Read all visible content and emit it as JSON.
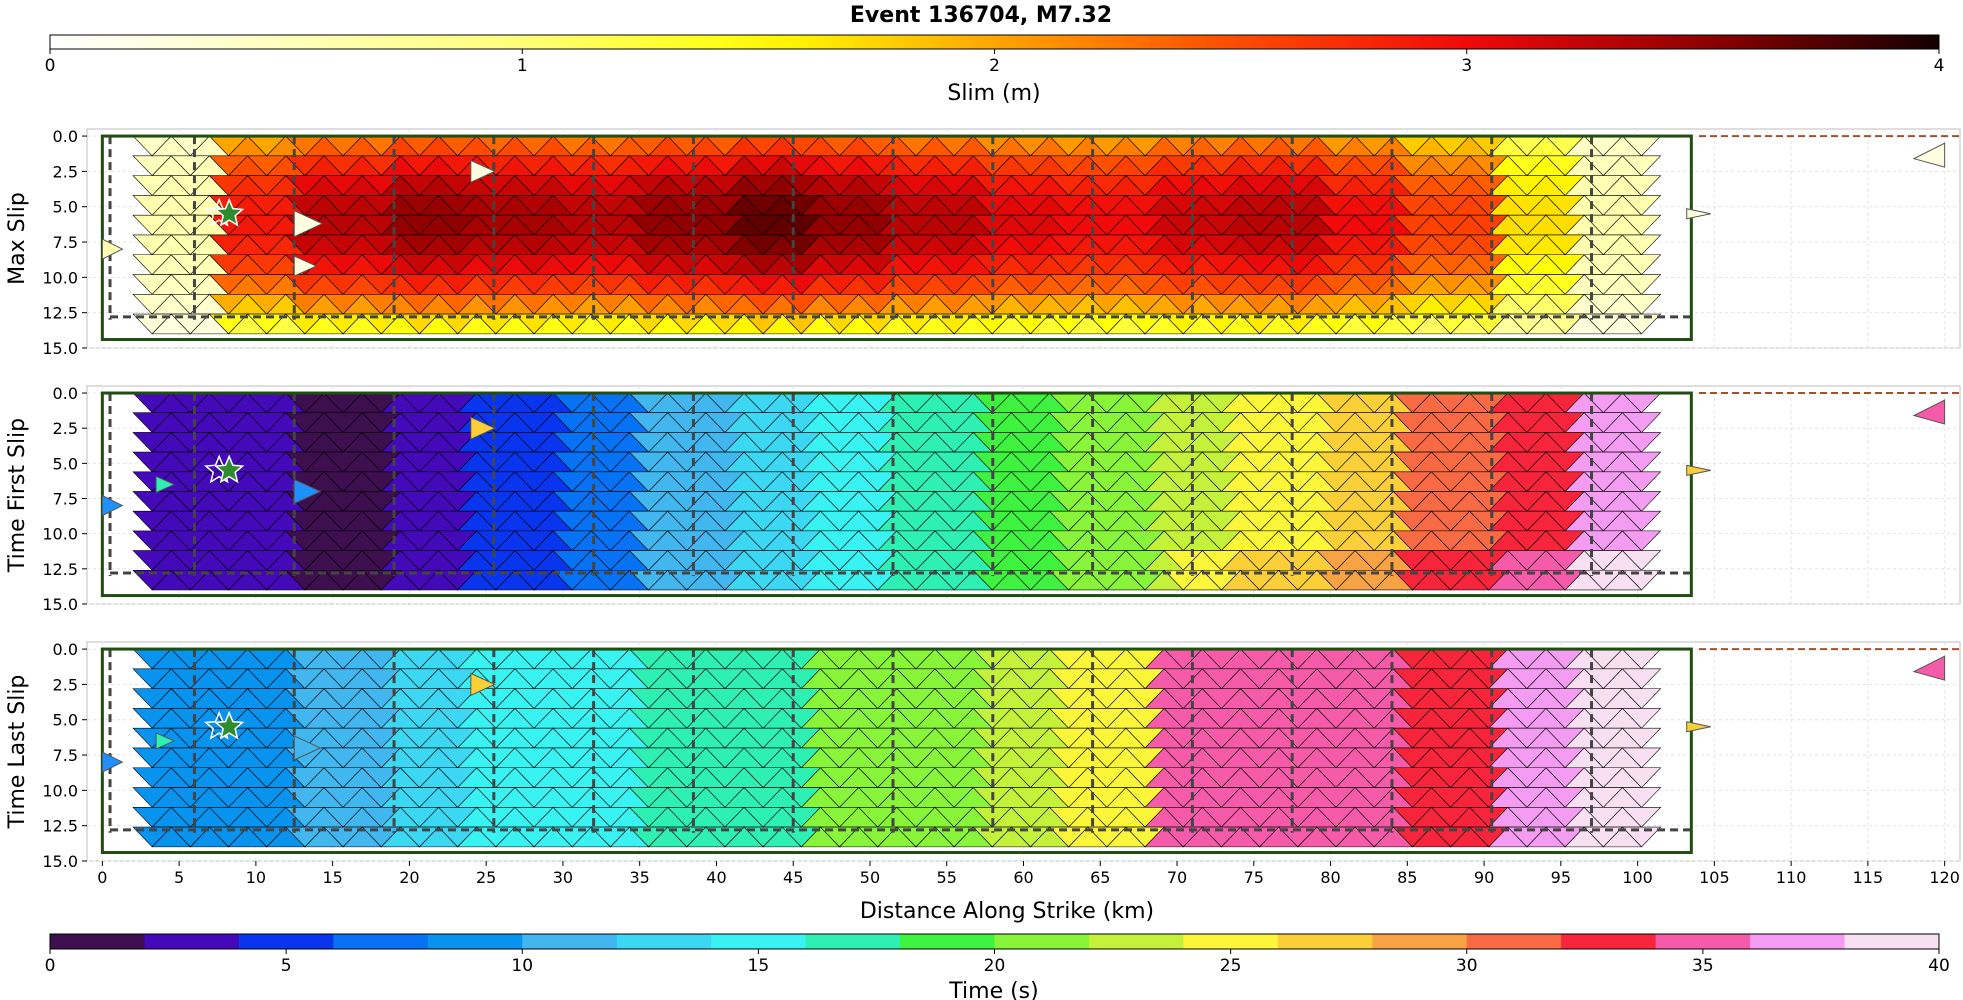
{
  "title": "Event 136704, M7.32",
  "chart_data": [
    {
      "type": "heatmap",
      "name": "Max Slip",
      "ylabel": "Max Slip",
      "xlim": [
        -1,
        121
      ],
      "ylim": [
        15,
        -0.5
      ],
      "yticks": [
        "0.0",
        "2.5",
        "5.0",
        "7.5",
        "10.0",
        "12.5",
        "15.0"
      ],
      "ytick_values": [
        0,
        2.5,
        5,
        7.5,
        10,
        12.5,
        15
      ],
      "color_scale": "slim",
      "hypocenter_km": [
        8,
        5.5
      ],
      "fault_extent_km": [
        0,
        103.5
      ],
      "values_along_strike": [
        0.6,
        2.9,
        3.3,
        3.5,
        3.4,
        3.3,
        3.5,
        3.7,
        3.5,
        3.3,
        3.1,
        3.0,
        3.2,
        3.3,
        3.0,
        2.6,
        1.7,
        0.6
      ],
      "markers_km": [
        [
          0.5,
          8
        ],
        [
          13.5,
          6
        ],
        [
          13.5,
          9
        ],
        [
          24,
          2.5
        ],
        [
          103,
          5.5
        ],
        [
          119,
          1.5
        ]
      ],
      "grid": true
    },
    {
      "type": "heatmap",
      "name": "Time First Slip",
      "ylabel": "Time First Slip",
      "xlim": [
        -1,
        121
      ],
      "ylim": [
        15,
        -0.5
      ],
      "yticks": [
        "0.0",
        "2.5",
        "5.0",
        "7.5",
        "10.0",
        "12.5",
        "15.0"
      ],
      "ytick_values": [
        0,
        2.5,
        5,
        7.5,
        10,
        12.5,
        15
      ],
      "color_scale": "time",
      "hypocenter_km": [
        8,
        5.5
      ],
      "fault_extent_km": [
        0,
        103.5
      ],
      "values_along_strike": [
        3,
        2,
        1,
        2,
        5,
        7,
        10,
        12,
        14,
        16,
        18,
        20,
        22,
        24,
        27,
        30,
        33,
        37
      ],
      "grid": true
    },
    {
      "type": "heatmap",
      "name": "Time Last Slip",
      "ylabel": "Time Last Slip",
      "xlim": [
        -1,
        121
      ],
      "ylim": [
        15,
        -0.5
      ],
      "yticks": [
        "0.0",
        "2.5",
        "5.0",
        "7.5",
        "10.0",
        "12.5",
        "15.0"
      ],
      "ytick_values": [
        0,
        2.5,
        5,
        7.5,
        10,
        12.5,
        15
      ],
      "xlabel": "Distance Along Strike (km)",
      "xticks": [
        "0",
        "5",
        "10",
        "15",
        "20",
        "25",
        "30",
        "35",
        "40",
        "45",
        "50",
        "55",
        "60",
        "65",
        "70",
        "75",
        "80",
        "85",
        "90",
        "95",
        "100",
        "105",
        "110",
        "115",
        "120"
      ],
      "xtick_values": [
        0,
        5,
        10,
        15,
        20,
        25,
        30,
        35,
        40,
        45,
        50,
        55,
        60,
        65,
        70,
        75,
        80,
        85,
        90,
        95,
        100,
        105,
        110,
        115,
        120
      ],
      "color_scale": "time",
      "hypocenter_km": [
        8,
        5.5
      ],
      "fault_extent_km": [
        0,
        103.5
      ],
      "values_along_strike": [
        9,
        9,
        11,
        13,
        14,
        15,
        16,
        17,
        20,
        21,
        23,
        25,
        34,
        35,
        34,
        33,
        37,
        39
      ],
      "grid": true
    }
  ],
  "colorbars": {
    "slim": {
      "label": "Slim (m)",
      "range": [
        0,
        4
      ],
      "ticks": [
        "0",
        "1",
        "2",
        "3",
        "4"
      ],
      "tick_values": [
        0,
        1,
        2,
        3,
        4
      ],
      "colormap": "hot_r"
    },
    "time": {
      "label": "Time (s)",
      "range": [
        0,
        40
      ],
      "ticks": [
        "0",
        "5",
        "10",
        "15",
        "20",
        "25",
        "30",
        "35",
        "40"
      ],
      "tick_values": [
        0,
        5,
        10,
        15,
        20,
        25,
        30,
        35,
        40
      ],
      "bins": 20,
      "colors": [
        "#3d0f4f",
        "#4409b9",
        "#0a35ee",
        "#0772f3",
        "#0893ee",
        "#41b6ef",
        "#3cd7f2",
        "#39f3f3",
        "#2ff0b3",
        "#3ef23f",
        "#88f43a",
        "#c4f23a",
        "#fbf63a",
        "#fbcf37",
        "#f7a344",
        "#f76a43",
        "#f6253c",
        "#f65ba9",
        "#f49cf1",
        "#f8dff2"
      ]
    }
  }
}
